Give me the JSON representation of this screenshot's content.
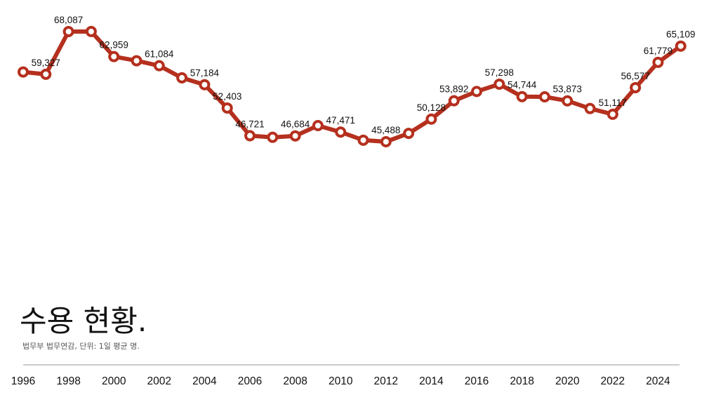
{
  "header": {
    "title": "수용 현황.",
    "subtitle": "법무부 법무연감, 단위: 1일 평균 명."
  },
  "colors": {
    "line": "#B5301E",
    "marker_fill": "#ffffff",
    "axis": "#999999"
  },
  "chart_data": {
    "type": "line",
    "title": "수용 현황.",
    "subtitle": "법무부 법무연감, 단위: 1일 평균 명.",
    "x": [
      1996,
      1997,
      1998,
      1999,
      2000,
      2001,
      2002,
      2003,
      2004,
      2005,
      2006,
      2007,
      2008,
      2009,
      2010,
      2011,
      2012,
      2013,
      2014,
      2015,
      2016,
      2017,
      2018,
      2019,
      2020,
      2021,
      2022,
      2023,
      2024,
      2025
    ],
    "values": [
      59800,
      59327,
      68087,
      68100,
      62959,
      62100,
      61084,
      58600,
      57184,
      52403,
      46721,
      46400,
      46684,
      48800,
      47471,
      45800,
      45488,
      47200,
      50128,
      53892,
      55800,
      57298,
      54744,
      54700,
      53873,
      52300,
      51117,
      56577,
      61779,
      65109
    ],
    "labels": [
      "",
      "59,327",
      "68,087",
      "",
      "62,959",
      "",
      "61,084",
      "",
      "57,184",
      "52,403",
      "46,721",
      "",
      "46,684",
      "",
      "47,471",
      "",
      "45,488",
      "",
      "50,128",
      "53,892",
      "",
      "57,298",
      "54,744",
      "",
      "53,873",
      "",
      "51,117",
      "56,577",
      "61,779",
      "65,109"
    ],
    "x_ticks": [
      "1996",
      "1998",
      "2000",
      "2002",
      "2004",
      "2006",
      "2008",
      "2010",
      "2012",
      "2014",
      "2016",
      "2018",
      "2020",
      "2022",
      "2024"
    ],
    "ylim": [
      30000,
      72000
    ],
    "grid": false,
    "legend": "none"
  }
}
